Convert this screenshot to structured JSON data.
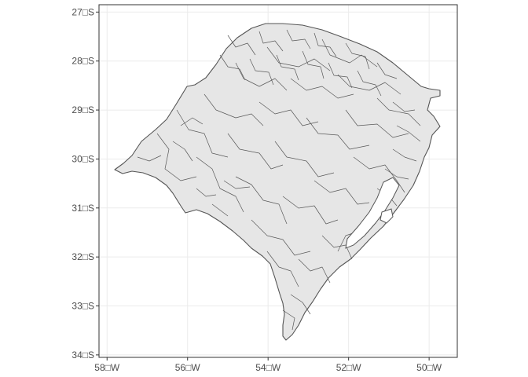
{
  "chart_data": {
    "type": "map",
    "title": "",
    "xlabel": "",
    "ylabel": "",
    "xlim": [
      -58.2,
      -49.3
    ],
    "ylim": [
      -34.05,
      -26.85
    ],
    "grid": true,
    "x_ticks": [
      {
        "value": -58,
        "label": "58□W"
      },
      {
        "value": -56,
        "label": "56□W"
      },
      {
        "value": -54,
        "label": "54□W"
      },
      {
        "value": -52,
        "label": "52□W"
      },
      {
        "value": -50,
        "label": "50□W"
      }
    ],
    "y_ticks": [
      {
        "value": -27,
        "label": "27□S"
      },
      {
        "value": -28,
        "label": "28□S"
      },
      {
        "value": -29,
        "label": "29□S"
      },
      {
        "value": -30,
        "label": "30□S"
      },
      {
        "value": -31,
        "label": "31□S"
      },
      {
        "value": -32,
        "label": "32□S"
      },
      {
        "value": -33,
        "label": "33□S"
      },
      {
        "value": -34,
        "label": "34□S"
      }
    ],
    "colors": {
      "fill": "#e6e6e6",
      "border": "#555555",
      "grid": "#ebebeb",
      "panel": "#333333",
      "water": "#ffffff"
    }
  }
}
